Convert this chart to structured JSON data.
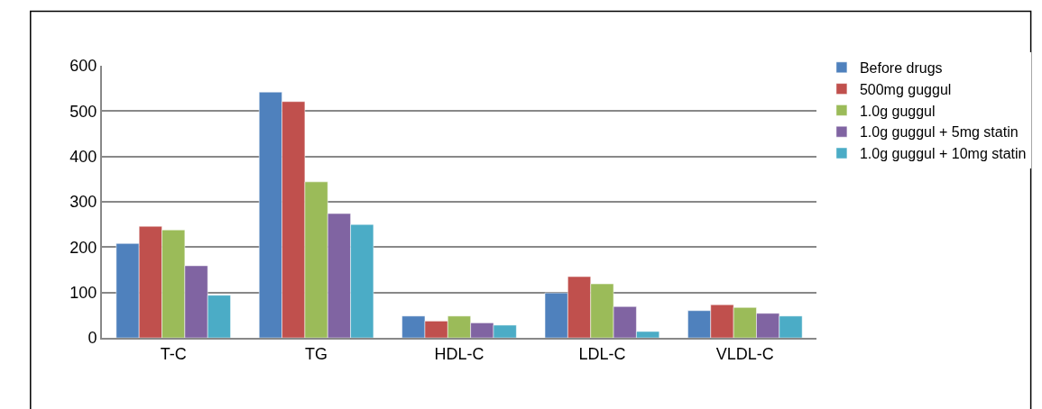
{
  "chart_data": {
    "type": "bar",
    "categories": [
      "T-C",
      "TG",
      "HDL-C",
      "LDL-C",
      "VLDL-C"
    ],
    "series": [
      {
        "name": "Before drugs",
        "color": "#4f81bd",
        "values": [
          208,
          542,
          48,
          99,
          60
        ]
      },
      {
        "name": "500mg guggul",
        "color": "#c0504d",
        "values": [
          246,
          521,
          37,
          135,
          73
        ]
      },
      {
        "name": "1.0g guggul",
        "color": "#9bbb59",
        "values": [
          238,
          344,
          48,
          119,
          67
        ]
      },
      {
        "name": "1.0g guggul + 5mg statin",
        "color": "#8064a2",
        "values": [
          159,
          274,
          33,
          69,
          54
        ]
      },
      {
        "name": "1.0g guggul + 10mg statin",
        "color": "#4bacc6",
        "values": [
          94,
          250,
          28,
          14,
          48
        ]
      }
    ],
    "ylim": [
      0,
      600
    ],
    "yticks": [
      0,
      100,
      200,
      300,
      400,
      500,
      600
    ],
    "grid": "y",
    "legend": "right"
  }
}
